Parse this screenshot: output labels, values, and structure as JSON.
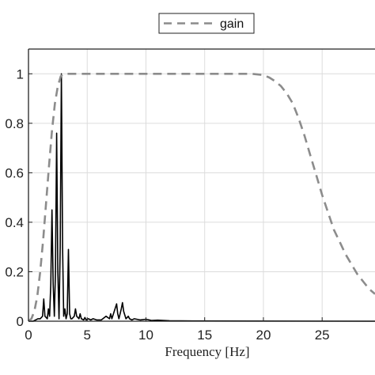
{
  "chart_data": {
    "type": "line",
    "title": "",
    "xlabel": "Frequency [Hz]",
    "ylabel": "",
    "xlim": [
      0,
      29.5
    ],
    "ylim": [
      0,
      1.1
    ],
    "grid": true,
    "legend_position": "top-center",
    "x_ticks": [
      {
        "value": 0,
        "label": "0"
      },
      {
        "value": 5,
        "label": "5"
      },
      {
        "value": 10,
        "label": "10"
      },
      {
        "value": 15,
        "label": "15"
      },
      {
        "value": 20,
        "label": "20"
      },
      {
        "value": 25,
        "label": "25"
      }
    ],
    "y_ticks": [
      {
        "value": 0,
        "label": "0"
      },
      {
        "value": 0.2,
        "label": "0.2"
      },
      {
        "value": 0.4,
        "label": "0.4"
      },
      {
        "value": 0.6,
        "label": "0.6"
      },
      {
        "value": 0.8,
        "label": "0.8"
      },
      {
        "value": 1,
        "label": "1"
      }
    ],
    "series": [
      {
        "name": "gain",
        "style": "dashed",
        "color": "#8c8c8c",
        "x": [
          0,
          0.25,
          0.5,
          0.75,
          1.0,
          1.25,
          1.5,
          1.75,
          2.0,
          2.25,
          2.5,
          2.75,
          3.0,
          3.5,
          5,
          10,
          15,
          19,
          20,
          20.5,
          21,
          21.5,
          22,
          22.5,
          23,
          23.5,
          24,
          24.5,
          25,
          25.5,
          26,
          26.5,
          27,
          27.5,
          28,
          28.5,
          29,
          29.5
        ],
        "y": [
          0,
          0.01,
          0.04,
          0.1,
          0.2,
          0.33,
          0.48,
          0.63,
          0.77,
          0.88,
          0.95,
          0.99,
          1.0,
          1.0,
          1.0,
          1.0,
          1.0,
          1.0,
          0.995,
          0.985,
          0.97,
          0.95,
          0.92,
          0.88,
          0.82,
          0.75,
          0.67,
          0.59,
          0.51,
          0.44,
          0.37,
          0.32,
          0.27,
          0.23,
          0.19,
          0.16,
          0.13,
          0.11
        ]
      },
      {
        "name": "",
        "style": "solid",
        "color": "#000000",
        "x": [
          0,
          0.4,
          0.8,
          1.0,
          1.2,
          1.3,
          1.4,
          1.6,
          1.7,
          1.8,
          1.9,
          2.0,
          2.1,
          2.2,
          2.3,
          2.4,
          2.5,
          2.6,
          2.7,
          2.8,
          2.9,
          3.0,
          3.1,
          3.2,
          3.3,
          3.4,
          3.5,
          3.6,
          3.7,
          3.9,
          4.0,
          4.1,
          4.3,
          4.4,
          4.5,
          4.7,
          4.8,
          4.9,
          5.1,
          5.3,
          5.5,
          5.8,
          6.2,
          6.6,
          6.9,
          7.0,
          7.1,
          7.3,
          7.5,
          7.6,
          7.7,
          7.9,
          8.0,
          8.1,
          8.3,
          8.5,
          8.6,
          8.8,
          9.0,
          9.5,
          10.0,
          10.5,
          11.0,
          12.0,
          14.0,
          29.5
        ],
        "y": [
          0,
          0,
          0.01,
          0.01,
          0.02,
          0.09,
          0.02,
          0.01,
          0.05,
          0.02,
          0.15,
          0.45,
          0.15,
          0.02,
          0.2,
          0.76,
          0.2,
          0.01,
          0.3,
          1.0,
          0.3,
          0.02,
          0.05,
          0.01,
          0.03,
          0.29,
          0.03,
          0.01,
          0.01,
          0.02,
          0.05,
          0.02,
          0.01,
          0.03,
          0.01,
          0.005,
          0.015,
          0.005,
          0.01,
          0.005,
          0.01,
          0.005,
          0.005,
          0.02,
          0.01,
          0.03,
          0.01,
          0.04,
          0.07,
          0.03,
          0.01,
          0.05,
          0.075,
          0.04,
          0.01,
          0.02,
          0.01,
          0.005,
          0.01,
          0.005,
          0.008,
          0.003,
          0.004,
          0.002,
          0.001,
          0
        ]
      }
    ]
  }
}
